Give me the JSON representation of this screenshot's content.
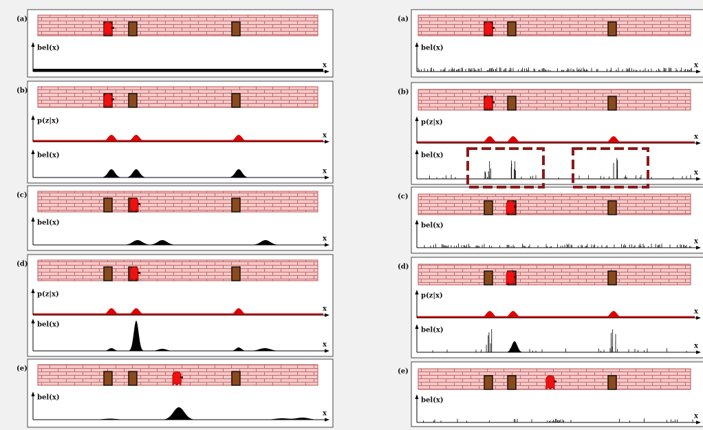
{
  "left": {
    "panels": [
      {
        "label": "(a)",
        "plots": [
          {
            "label": "bel(x)",
            "axis": "x"
          }
        ]
      },
      {
        "label": "(b)",
        "plots": [
          {
            "label": "p(z|x)",
            "axis": "x"
          },
          {
            "label": "bel(x)",
            "axis": "x"
          }
        ]
      },
      {
        "label": "(c)",
        "plots": [
          {
            "label": "bel(x)",
            "axis": "x"
          }
        ]
      },
      {
        "label": "(d)",
        "plots": [
          {
            "label": "p(z|x)",
            "axis": "x"
          },
          {
            "label": "bel(x)",
            "axis": "x"
          }
        ]
      },
      {
        "label": "(e)",
        "plots": [
          {
            "label": "bel(x)",
            "axis": "x"
          }
        ]
      }
    ]
  },
  "right": {
    "panels": [
      {
        "label": "(a)",
        "plots": [
          {
            "label": "bel(x)",
            "axis": "x"
          }
        ]
      },
      {
        "label": "(b)",
        "plots": [
          {
            "label": "p(z|x)",
            "axis": "x"
          },
          {
            "label": "bel(x)",
            "axis": "x"
          }
        ]
      },
      {
        "label": "(c)",
        "plots": [
          {
            "label": "bel(x)",
            "axis": "x"
          }
        ]
      },
      {
        "label": "(d)",
        "plots": [
          {
            "label": "p(z|x)",
            "axis": "x"
          },
          {
            "label": "bel(x)",
            "axis": "x"
          }
        ]
      },
      {
        "label": "(e)",
        "plots": [
          {
            "label": "bel(x)",
            "axis": "x"
          }
        ]
      }
    ]
  }
}
